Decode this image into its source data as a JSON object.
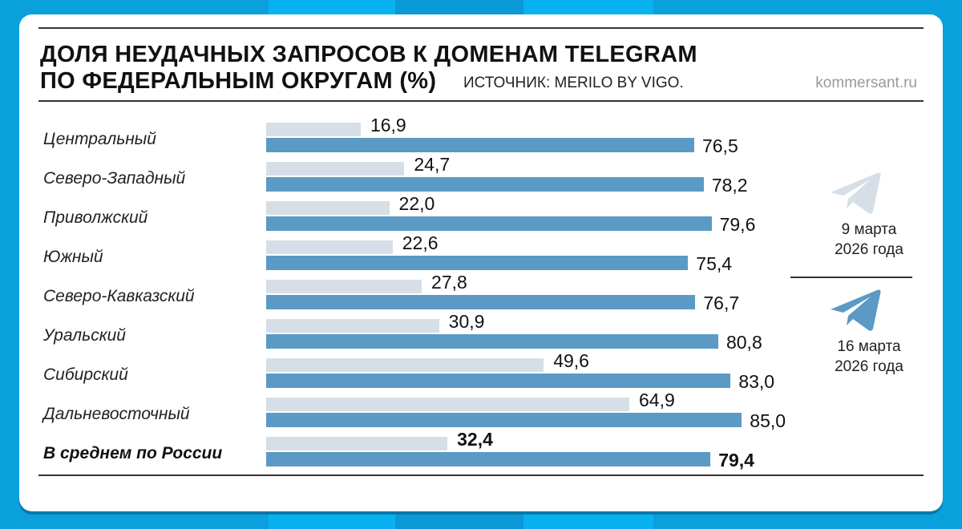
{
  "header": {
    "title_line1": "ДОЛЯ НЕУДАЧНЫХ ЗАПРОСОВ К ДОМЕНАМ TELEGRAM",
    "title_line2": "ПО ФЕДЕРАЛЬНЫМ ОКРУГАМ (%)",
    "source": "ИСТОЧНИК: MERILO BY VIGO.",
    "site": "kommersant.ru"
  },
  "legend": {
    "old": {
      "icon": "telegram-icon",
      "line1": "9 марта",
      "line2": "2026 года",
      "color": "#d6dfe7"
    },
    "new": {
      "icon": "telegram-icon",
      "line1": "16 марта",
      "line2": "2026 года",
      "color": "#5b9ac5"
    }
  },
  "rows": [
    {
      "label": "Центральный",
      "old": "16,9",
      "new": "76,5"
    },
    {
      "label": "Северо-Западный",
      "old": "24,7",
      "new": "78,2"
    },
    {
      "label": "Приволжский",
      "old": "22,0",
      "new": "79,6"
    },
    {
      "label": "Южный",
      "old": "22,6",
      "new": "75,4"
    },
    {
      "label": "Северо-Кавказский",
      "old": "27,8",
      "new": "76,7"
    },
    {
      "label": "Уральский",
      "old": "30,9",
      "new": "80,8"
    },
    {
      "label": "Сибирский",
      "old": "49,6",
      "new": "83,0"
    },
    {
      "label": "Дальневосточный",
      "old": "64,9",
      "new": "85,0"
    },
    {
      "label": "В среднем по России",
      "old": "32,4",
      "new": "79,4"
    }
  ],
  "chart_data": {
    "type": "bar",
    "orientation": "horizontal",
    "title": "Доля неудачных запросов к доменам Telegram по федеральным округам (%)",
    "subtitle": "Источник: Merilo by Vigo.",
    "xlabel": "",
    "ylabel": "",
    "categories": [
      "Центральный",
      "Северо-Западный",
      "Приволжский",
      "Южный",
      "Северо-Кавказский",
      "Уральский",
      "Сибирский",
      "Дальневосточный",
      "В среднем по России"
    ],
    "series": [
      {
        "name": "9 марта 2026 года",
        "color": "#d6dfe7",
        "values": [
          16.9,
          24.7,
          22.0,
          22.6,
          27.8,
          30.9,
          49.6,
          64.9,
          32.4
        ]
      },
      {
        "name": "16 марта 2026 года",
        "color": "#5b9ac5",
        "values": [
          76.5,
          78.2,
          79.6,
          75.4,
          76.7,
          80.8,
          83.0,
          85.0,
          79.4
        ]
      }
    ],
    "xlim": [
      0,
      100
    ],
    "grid": false,
    "legend_position": "right",
    "data_labels": true
  }
}
